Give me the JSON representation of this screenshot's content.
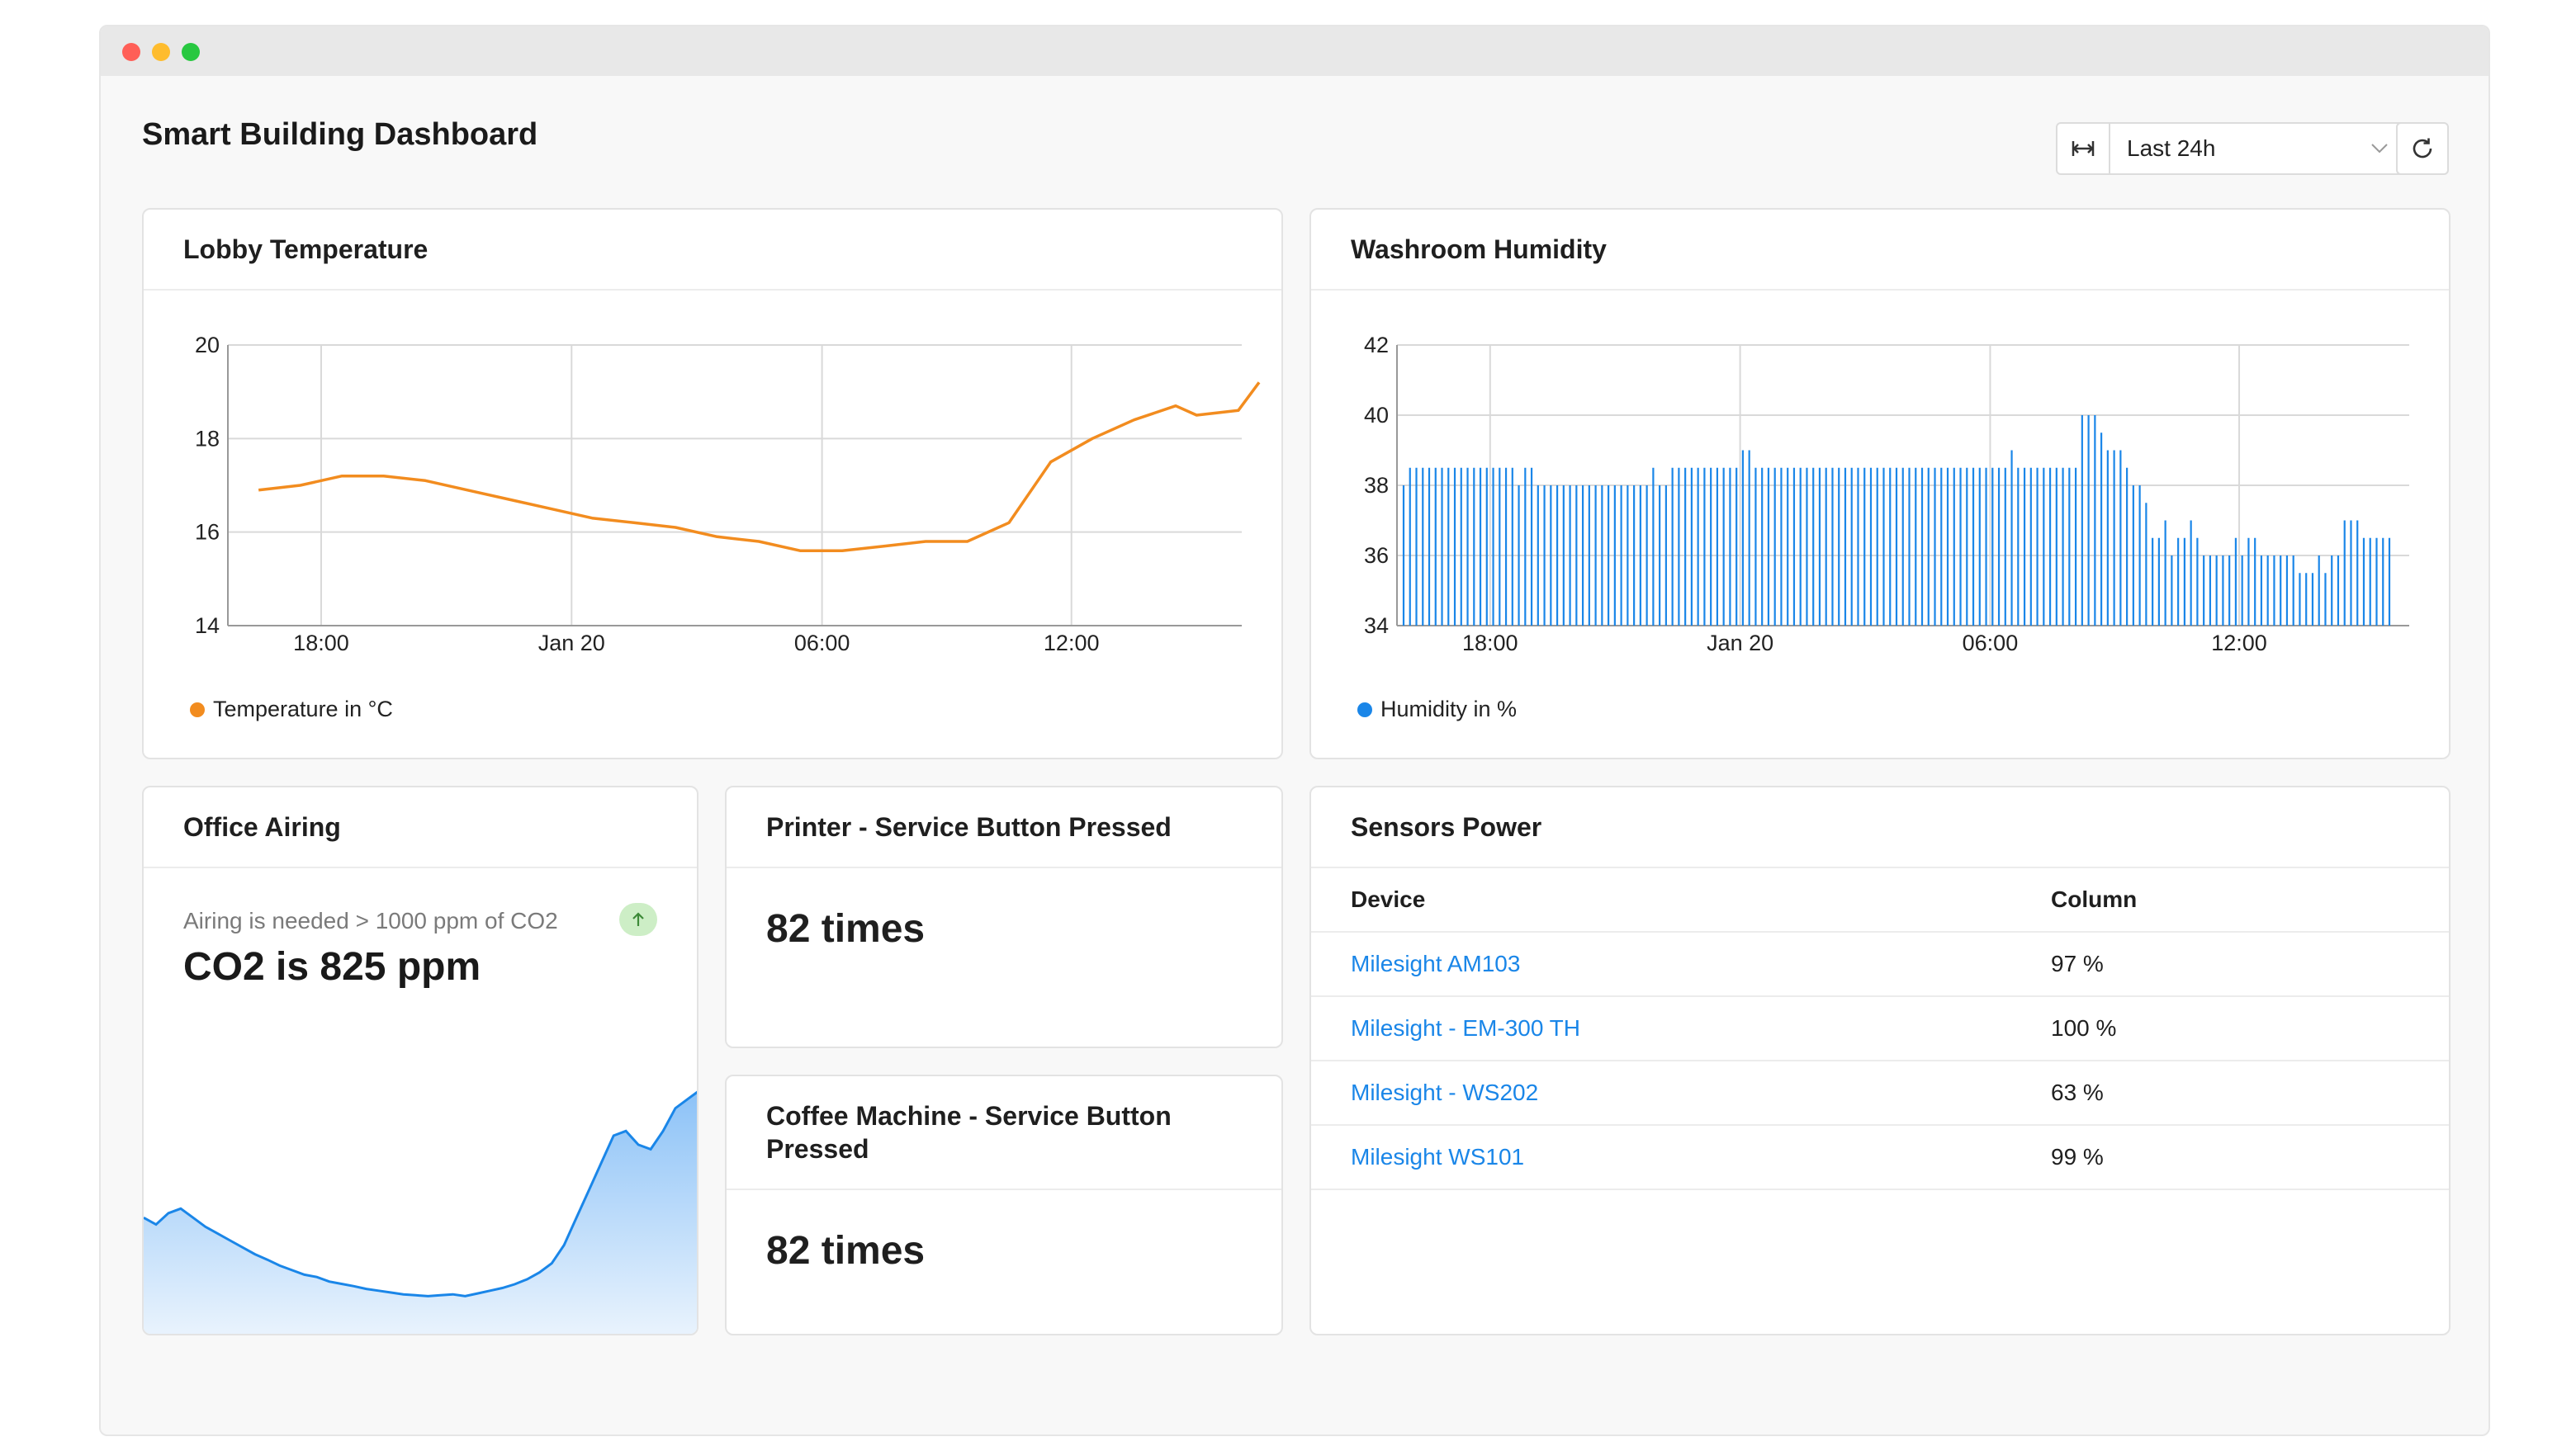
{
  "dashboard": {
    "title": "Smart Building Dashboard",
    "time_range": "Last 24h"
  },
  "icons": {
    "range": "range-width-icon",
    "dropdown": "chevron-down-icon",
    "refresh": "refresh-icon",
    "trend": "arrow-up-icon"
  },
  "colors": {
    "temperature": "#f28c1f",
    "humidity": "#1a86e8",
    "link": "#1a86e8",
    "trend_badge": "#cdeec6"
  },
  "temperature_card": {
    "title": "Lobby Temperature",
    "legend": "Temperature in °C"
  },
  "humidity_card": {
    "title": "Washroom Humidity",
    "legend": "Humidity in %"
  },
  "airing_card": {
    "title": "Office Airing",
    "note": "Airing is needed > 1000 ppm of CO2",
    "value": "CO2 is 825 ppm"
  },
  "printer_card": {
    "title": "Printer - Service Button Pressed",
    "count": "82  times"
  },
  "coffee_card": {
    "title": "Coffee Machine - Service Button Pressed",
    "count": "82  times"
  },
  "power_card": {
    "title": "Sensors Power",
    "columns": [
      "Device",
      "Column"
    ],
    "rows": [
      {
        "device": "Milesight AM103",
        "value": "97 %"
      },
      {
        "device": "Milesight - EM-300 TH",
        "value": "100 %"
      },
      {
        "device": "Milesight - WS202",
        "value": "63 %"
      },
      {
        "device": "Milesight WS101",
        "value": "99 %"
      }
    ]
  },
  "chart_data": [
    {
      "type": "line",
      "title": "Lobby Temperature",
      "x_tick_labels": [
        "18:00",
        "Jan 20",
        "06:00",
        "12:00"
      ],
      "x_hours": [
        -1.5,
        -0.5,
        0.5,
        1.5,
        2.5,
        3.5,
        4.5,
        5.5,
        6.5,
        7.5,
        8.5,
        9.5,
        10.5,
        11.5,
        12.5,
        13.5,
        14.5,
        15.5,
        16.5,
        17.5,
        18.5,
        19.5,
        20.5,
        21.0,
        22.0,
        22.5
      ],
      "ylim": [
        14,
        20
      ],
      "y_ticks": [
        14,
        16,
        18,
        20
      ],
      "series": [
        {
          "name": "Temperature in °C",
          "values": [
            16.9,
            17.0,
            17.2,
            17.2,
            17.1,
            16.9,
            16.7,
            16.5,
            16.3,
            16.2,
            16.1,
            15.9,
            15.8,
            15.6,
            15.6,
            15.7,
            15.8,
            15.8,
            16.2,
            17.5,
            18.0,
            18.4,
            18.7,
            18.5,
            18.6,
            19.2
          ]
        }
      ]
    },
    {
      "type": "bar",
      "title": "Washroom Humidity",
      "x_tick_labels": [
        "18:00",
        "Jan 20",
        "06:00",
        "12:00"
      ],
      "ylim": [
        34,
        42
      ],
      "y_ticks": [
        34,
        36,
        38,
        40,
        42
      ],
      "series": [
        {
          "name": "Humidity in %",
          "values": [
            38,
            38.5,
            38.5,
            38.5,
            38.5,
            38.5,
            38.5,
            38.5,
            38.5,
            38.5,
            38.5,
            38.5,
            38.5,
            38.5,
            38.5,
            38.5,
            38.5,
            38.5,
            38,
            38.5,
            38.5,
            38,
            38,
            38,
            38,
            38,
            38,
            38,
            38,
            38,
            38,
            38,
            38,
            38,
            38,
            38,
            38,
            38,
            38,
            38.5,
            38,
            38,
            38.5,
            38.5,
            38.5,
            38.5,
            38.5,
            38.5,
            38.5,
            38.5,
            38.5,
            38.5,
            38.5,
            39,
            39,
            38.5,
            38.5,
            38.5,
            38.5,
            38.5,
            38.5,
            38.5,
            38.5,
            38.5,
            38.5,
            38.5,
            38.5,
            38.5,
            38.5,
            38.5,
            38.5,
            38.5,
            38.5,
            38.5,
            38.5,
            38.5,
            38.5,
            38.5,
            38.5,
            38.5,
            38.5,
            38.5,
            38.5,
            38.5,
            38.5,
            38.5,
            38.5,
            38.5,
            38.5,
            38.5,
            38.5,
            38.5,
            38.5,
            38.5,
            38.5,
            39,
            38.5,
            38.5,
            38.5,
            38.5,
            38.5,
            38.5,
            38.5,
            38.5,
            38.5,
            38.5,
            40,
            40,
            40,
            39.5,
            39,
            39,
            39,
            38.5,
            38,
            38,
            37.5,
            36.5,
            36.5,
            37,
            36,
            36.5,
            36.5,
            37,
            36.5,
            36,
            36,
            36,
            36,
            36,
            36.5,
            36,
            36.5,
            36.5,
            36,
            36,
            36,
            36,
            36,
            36,
            35.5,
            35.5,
            35.5,
            36,
            35.5,
            36,
            36,
            37,
            37,
            37,
            36.5,
            36.5,
            36.5,
            36.5,
            36.5
          ]
        }
      ]
    },
    {
      "type": "area",
      "title": "Office Airing",
      "series": [
        {
          "name": "CO2",
          "values": [
            640,
            625,
            650,
            660,
            640,
            620,
            605,
            590,
            575,
            560,
            548,
            535,
            525,
            515,
            510,
            500,
            495,
            490,
            484,
            480,
            476,
            472,
            470,
            468,
            470,
            472,
            468,
            474,
            480,
            486,
            494,
            505,
            520,
            540,
            580,
            640,
            700,
            760,
            820,
            830,
            800,
            790,
            830,
            880,
            900,
            920
          ]
        }
      ]
    }
  ]
}
